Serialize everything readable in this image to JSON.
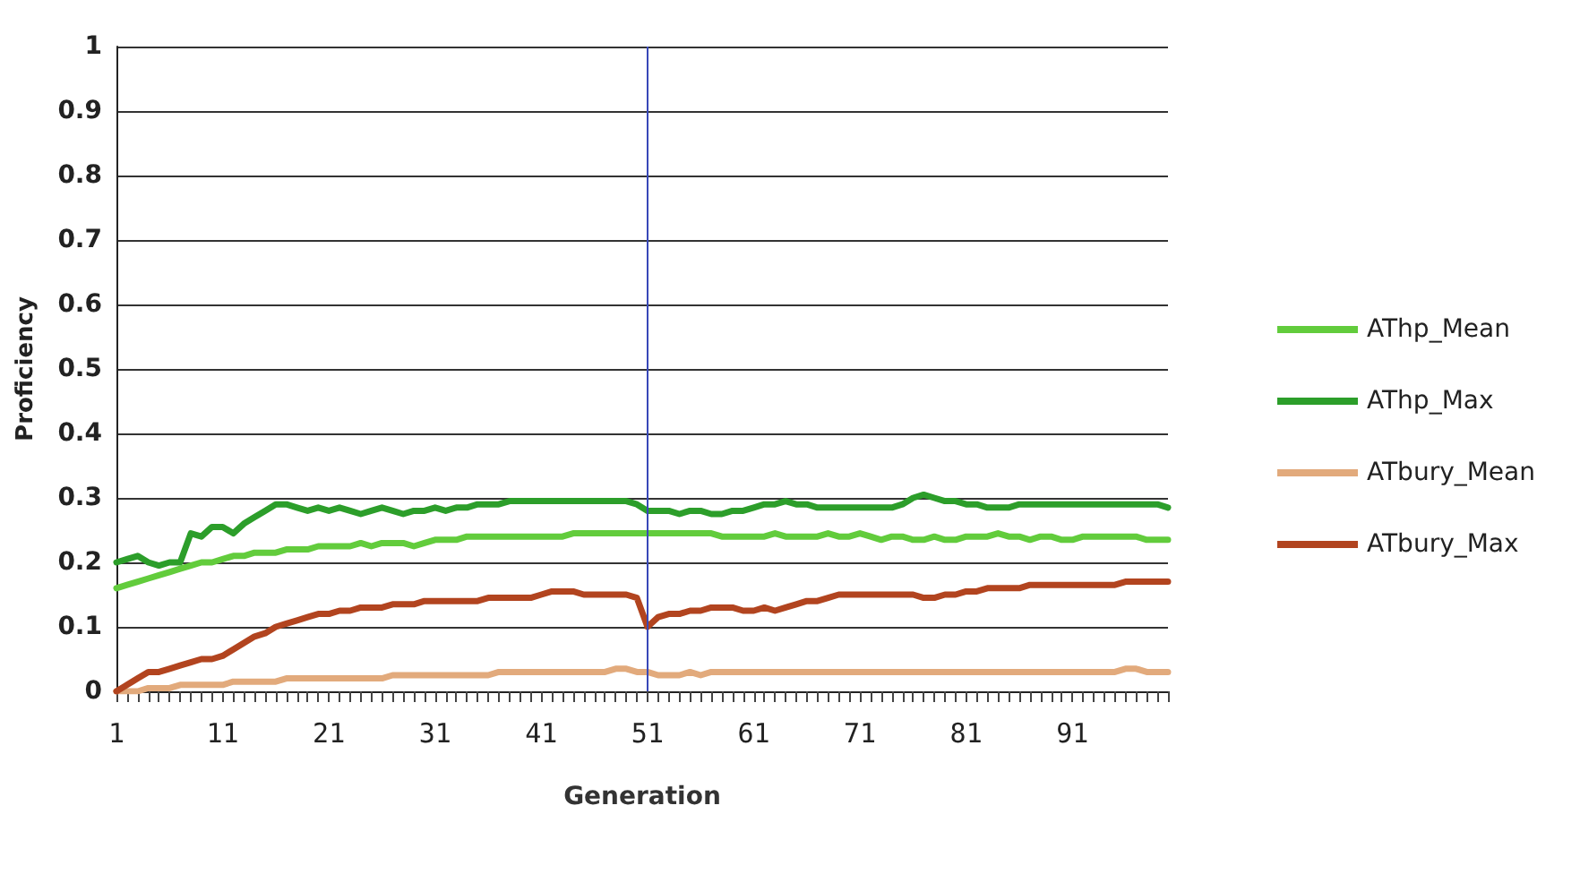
{
  "chart_data": {
    "type": "line",
    "xlabel": "Generation",
    "ylabel": "Proficiency",
    "categories": [
      "1",
      null,
      null,
      null,
      null,
      null,
      null,
      null,
      null,
      null,
      "11",
      null,
      null,
      null,
      null,
      null,
      null,
      null,
      null,
      null,
      "21",
      null,
      null,
      null,
      null,
      null,
      null,
      null,
      null,
      null,
      "31",
      null,
      null,
      null,
      null,
      null,
      null,
      null,
      null,
      null,
      "41",
      null,
      null,
      null,
      null,
      null,
      null,
      null,
      null,
      null,
      "51",
      null,
      null,
      null,
      null,
      null,
      null,
      null,
      null,
      null,
      "61",
      null,
      null,
      null,
      null,
      null,
      null,
      null,
      null,
      null,
      "71",
      null,
      null,
      null,
      null,
      null,
      null,
      null,
      null,
      null,
      "81",
      null,
      null,
      null,
      null,
      null,
      null,
      null,
      null,
      null,
      "91",
      null,
      null,
      null,
      null,
      null,
      null,
      null,
      null,
      null
    ],
    "ylim": [
      0,
      1
    ],
    "yticks": [
      0,
      0.1,
      0.2,
      0.3,
      0.4,
      0.5,
      0.6,
      0.7,
      0.8,
      0.9,
      1
    ],
    "grid": "y",
    "legend": "right",
    "marker": "none",
    "line_style": "solid",
    "ref_lines": [
      {
        "axis": "x",
        "value": "51",
        "color": "#3848b8"
      }
    ],
    "series": [
      {
        "name": "AThp_Mean",
        "color": "#62cc3c",
        "values": [
          0.16,
          0.165,
          0.17,
          0.175,
          0.18,
          0.185,
          0.19,
          0.195,
          0.2,
          0.2,
          0.205,
          0.21,
          0.21,
          0.215,
          0.215,
          0.215,
          0.22,
          0.22,
          0.22,
          0.225,
          0.225,
          0.225,
          0.225,
          0.23,
          0.225,
          0.23,
          0.23,
          0.23,
          0.225,
          0.23,
          0.235,
          0.235,
          0.235,
          0.24,
          0.24,
          0.24,
          0.24,
          0.24,
          0.24,
          0.24,
          0.24,
          0.24,
          0.24,
          0.245,
          0.245,
          0.245,
          0.245,
          0.245,
          0.245,
          0.245,
          0.245,
          0.245,
          0.245,
          0.245,
          0.245,
          0.245,
          0.245,
          0.24,
          0.24,
          0.24,
          0.24,
          0.24,
          0.245,
          0.24,
          0.24,
          0.24,
          0.24,
          0.245,
          0.24,
          0.24,
          0.245,
          0.24,
          0.235,
          0.24,
          0.24,
          0.235,
          0.235,
          0.24,
          0.235,
          0.235,
          0.24,
          0.24,
          0.24,
          0.245,
          0.24,
          0.24,
          0.235,
          0.24,
          0.24,
          0.235,
          0.235,
          0.24,
          0.24,
          0.24,
          0.24,
          0.24,
          0.24,
          0.235,
          0.235,
          0.235
        ]
      },
      {
        "name": "AThp_Max",
        "color": "#2c9e2a",
        "values": [
          0.2,
          0.205,
          0.21,
          0.2,
          0.195,
          0.2,
          0.2,
          0.245,
          0.24,
          0.255,
          0.255,
          0.245,
          0.26,
          0.27,
          0.28,
          0.29,
          0.29,
          0.285,
          0.28,
          0.285,
          0.28,
          0.285,
          0.28,
          0.275,
          0.28,
          0.285,
          0.28,
          0.275,
          0.28,
          0.28,
          0.285,
          0.28,
          0.285,
          0.285,
          0.29,
          0.29,
          0.29,
          0.295,
          0.295,
          0.295,
          0.295,
          0.295,
          0.295,
          0.295,
          0.295,
          0.295,
          0.295,
          0.295,
          0.295,
          0.29,
          0.28,
          0.28,
          0.28,
          0.275,
          0.28,
          0.28,
          0.275,
          0.275,
          0.28,
          0.28,
          0.285,
          0.29,
          0.29,
          0.295,
          0.29,
          0.29,
          0.285,
          0.285,
          0.285,
          0.285,
          0.285,
          0.285,
          0.285,
          0.285,
          0.29,
          0.3,
          0.305,
          0.3,
          0.295,
          0.295,
          0.29,
          0.29,
          0.285,
          0.285,
          0.285,
          0.29,
          0.29,
          0.29,
          0.29,
          0.29,
          0.29,
          0.29,
          0.29,
          0.29,
          0.29,
          0.29,
          0.29,
          0.29,
          0.29,
          0.285
        ]
      },
      {
        "name": "ATbury_Mean",
        "color": "#e2aa7c",
        "values": [
          0,
          0,
          0,
          0.005,
          0.005,
          0.005,
          0.01,
          0.01,
          0.01,
          0.01,
          0.01,
          0.015,
          0.015,
          0.015,
          0.015,
          0.015,
          0.02,
          0.02,
          0.02,
          0.02,
          0.02,
          0.02,
          0.02,
          0.02,
          0.02,
          0.02,
          0.025,
          0.025,
          0.025,
          0.025,
          0.025,
          0.025,
          0.025,
          0.025,
          0.025,
          0.025,
          0.03,
          0.03,
          0.03,
          0.03,
          0.03,
          0.03,
          0.03,
          0.03,
          0.03,
          0.03,
          0.03,
          0.035,
          0.035,
          0.03,
          0.03,
          0.025,
          0.025,
          0.025,
          0.03,
          0.025,
          0.03,
          0.03,
          0.03,
          0.03,
          0.03,
          0.03,
          0.03,
          0.03,
          0.03,
          0.03,
          0.03,
          0.03,
          0.03,
          0.03,
          0.03,
          0.03,
          0.03,
          0.03,
          0.03,
          0.03,
          0.03,
          0.03,
          0.03,
          0.03,
          0.03,
          0.03,
          0.03,
          0.03,
          0.03,
          0.03,
          0.03,
          0.03,
          0.03,
          0.03,
          0.03,
          0.03,
          0.03,
          0.03,
          0.03,
          0.035,
          0.035,
          0.03,
          0.03,
          0.03
        ]
      },
      {
        "name": "ATbury_Max",
        "color": "#b2441f",
        "values": [
          0,
          0.01,
          0.02,
          0.03,
          0.03,
          0.035,
          0.04,
          0.045,
          0.05,
          0.05,
          0.055,
          0.065,
          0.075,
          0.085,
          0.09,
          0.1,
          0.105,
          0.11,
          0.115,
          0.12,
          0.12,
          0.125,
          0.125,
          0.13,
          0.13,
          0.13,
          0.135,
          0.135,
          0.135,
          0.14,
          0.14,
          0.14,
          0.14,
          0.14,
          0.14,
          0.145,
          0.145,
          0.145,
          0.145,
          0.145,
          0.15,
          0.155,
          0.155,
          0.155,
          0.15,
          0.15,
          0.15,
          0.15,
          0.15,
          0.145,
          0.1,
          0.115,
          0.12,
          0.12,
          0.125,
          0.125,
          0.13,
          0.13,
          0.13,
          0.125,
          0.125,
          0.13,
          0.125,
          0.13,
          0.135,
          0.14,
          0.14,
          0.145,
          0.15,
          0.15,
          0.15,
          0.15,
          0.15,
          0.15,
          0.15,
          0.15,
          0.145,
          0.145,
          0.15,
          0.15,
          0.155,
          0.155,
          0.16,
          0.16,
          0.16,
          0.16,
          0.165,
          0.165,
          0.165,
          0.165,
          0.165,
          0.165,
          0.165,
          0.165,
          0.165,
          0.17,
          0.17,
          0.17,
          0.17,
          0.17
        ]
      }
    ]
  }
}
